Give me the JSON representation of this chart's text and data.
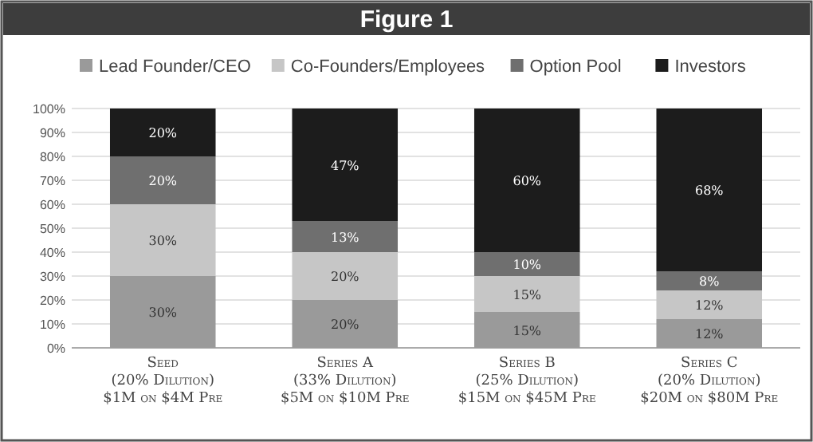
{
  "chart_data": {
    "type": "bar",
    "title": "Figure 1",
    "stacked": true,
    "categories": [
      "Seed\n(20% Dilution)\n$1M on $4M Pre",
      "Series A\n(33% Dilution)\n$5M on $10M Pre",
      "Series B\n(25% Dilution)\n$15M on $45M Pre",
      "Series C\n(20% Dilution)\n$20M on $80M Pre"
    ],
    "series": [
      {
        "name": "Lead Founder/CEO",
        "color": "#9a9a9a",
        "values": [
          30,
          20,
          15,
          12
        ],
        "value_labels": [
          "30%",
          "20%",
          "15%",
          "12%"
        ]
      },
      {
        "name": "Co-Founders/Employees",
        "color": "#c6c6c6",
        "values": [
          30,
          20,
          15,
          12
        ],
        "value_labels": [
          "30%",
          "20%",
          "15%",
          "12%"
        ]
      },
      {
        "name": "Option Pool",
        "color": "#6f6f6f",
        "values": [
          20,
          13,
          10,
          8
        ],
        "value_labels": [
          "20%",
          "13%",
          "10%",
          "8%"
        ]
      },
      {
        "name": "Investors",
        "color": "#1c1c1c",
        "values": [
          20,
          47,
          60,
          68
        ],
        "value_labels": [
          "20%",
          "47%",
          "60%",
          "68%"
        ]
      }
    ],
    "ylim": [
      0,
      100
    ],
    "yticks": [
      {
        "value": 0,
        "label": "0%"
      },
      {
        "value": 10,
        "label": "10%"
      },
      {
        "value": 20,
        "label": "20%"
      },
      {
        "value": 30,
        "label": "30%"
      },
      {
        "value": 40,
        "label": "40%"
      },
      {
        "value": 50,
        "label": "50%"
      },
      {
        "value": 60,
        "label": "60%"
      },
      {
        "value": 70,
        "label": "70%"
      },
      {
        "value": 80,
        "label": "80%"
      },
      {
        "value": 90,
        "label": "90%"
      },
      {
        "value": 100,
        "label": "100%"
      }
    ],
    "grid": "y",
    "legend": "top"
  }
}
